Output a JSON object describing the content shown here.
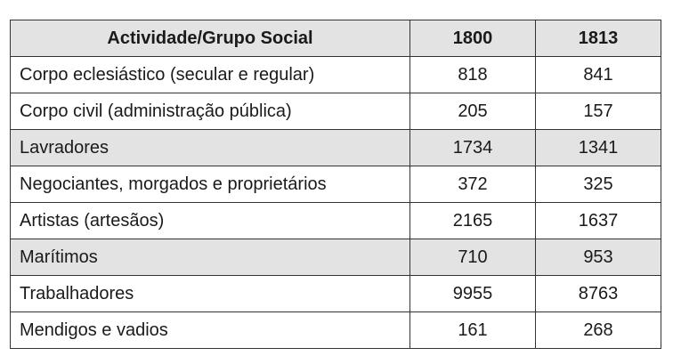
{
  "chart_data": {
    "type": "table",
    "columns": [
      "Actividade/Grupo Social",
      "1800",
      "1813"
    ],
    "rows": [
      {
        "label": "Corpo eclesiástico (secular e regular)",
        "v1800": "818",
        "v1813": "841",
        "shaded": false
      },
      {
        "label": "Corpo civil (administração pública)",
        "v1800": "205",
        "v1813": "157",
        "shaded": false
      },
      {
        "label": "Lavradores",
        "v1800": "1734",
        "v1813": "1341",
        "shaded": true
      },
      {
        "label": "Negociantes, morgados e proprietários",
        "v1800": "372",
        "v1813": "325",
        "shaded": false
      },
      {
        "label": "Artistas (artesãos)",
        "v1800": "2165",
        "v1813": "1637",
        "shaded": false
      },
      {
        "label": "Marítimos",
        "v1800": "710",
        "v1813": "953",
        "shaded": true
      },
      {
        "label": "Trabalhadores",
        "v1800": "9955",
        "v1813": "8763",
        "shaded": false
      },
      {
        "label": "Mendigos e vadios",
        "v1800": "161",
        "v1813": "268",
        "shaded": false
      }
    ]
  },
  "colors": {
    "header_bg": "#e3e3e3",
    "shaded_row_bg": "#e3e3e3",
    "border": "#333333"
  }
}
